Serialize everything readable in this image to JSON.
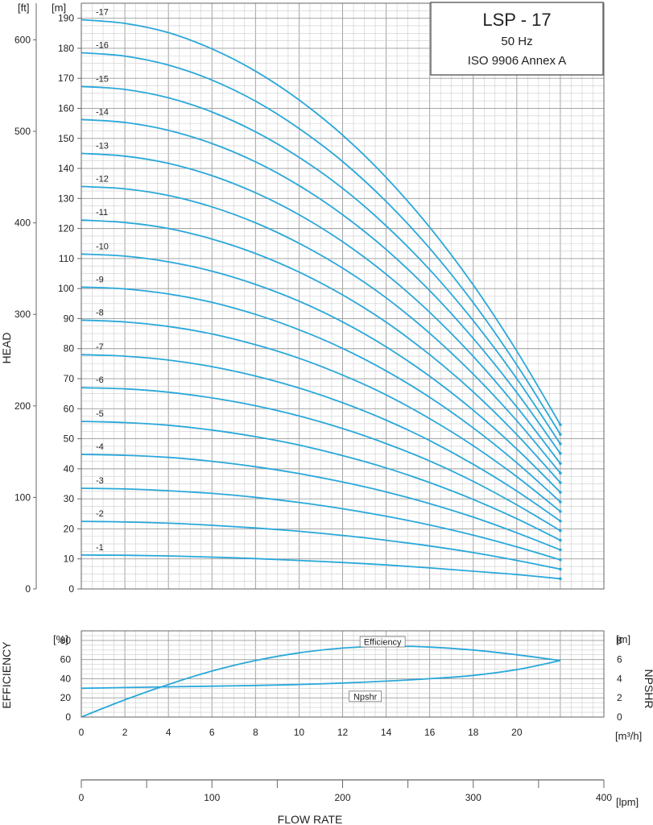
{
  "title_box": {
    "title": "LSP - 17",
    "frequency": "50 Hz",
    "standard": "ISO 9906 Annex A"
  },
  "colors": {
    "curve": "#2aa8da",
    "grid_minor": "#cccccc",
    "grid_major": "#9a9a9a",
    "axis": "#666666"
  },
  "chart_data": [
    {
      "type": "line",
      "name": "head",
      "ylabel": "HEAD",
      "unit_left": "[ft]",
      "unit_right": "[m]",
      "xlim": [
        0,
        24
      ],
      "ylim": [
        0,
        195
      ],
      "ylim_ft": [
        0,
        640
      ],
      "y_ticks": [
        0,
        10,
        20,
        30,
        40,
        50,
        60,
        70,
        80,
        90,
        100,
        110,
        120,
        130,
        140,
        150,
        160,
        170,
        180,
        190
      ],
      "y_ticks_ft": [
        0,
        100,
        200,
        300,
        400,
        500,
        600
      ],
      "grid": true,
      "x": [
        0,
        2,
        4,
        6,
        8,
        10,
        12,
        14,
        16,
        18,
        20,
        22
      ],
      "series": [
        {
          "name": "-1",
          "values": [
            11.3,
            11.2,
            11.0,
            10.6,
            10.1,
            9.5,
            8.8,
            8.0,
            7.0,
            5.9,
            4.8,
            3.4
          ]
        },
        {
          "name": "-2",
          "values": [
            22.5,
            22.3,
            21.9,
            21.2,
            20.3,
            19.2,
            17.8,
            16.2,
            14.3,
            12.1,
            9.5,
            6.6
          ]
        },
        {
          "name": "-3",
          "values": [
            33.5,
            33.3,
            32.7,
            31.8,
            30.5,
            28.8,
            26.7,
            24.2,
            21.3,
            17.9,
            14.0,
            9.7
          ]
        },
        {
          "name": "-4",
          "values": [
            44.8,
            44.5,
            43.8,
            42.5,
            40.7,
            38.4,
            35.6,
            32.3,
            28.4,
            23.9,
            18.7,
            13.0
          ]
        },
        {
          "name": "-5",
          "values": [
            55.8,
            55.4,
            54.5,
            52.9,
            50.7,
            47.9,
            44.4,
            40.3,
            35.4,
            29.8,
            23.4,
            16.2
          ]
        },
        {
          "name": "-6",
          "values": [
            67.0,
            66.6,
            65.5,
            63.6,
            61.0,
            57.6,
            53.4,
            48.4,
            42.6,
            35.8,
            28.0,
            19.4
          ]
        },
        {
          "name": "-7",
          "values": [
            78.0,
            77.5,
            76.2,
            74.0,
            70.9,
            66.9,
            62.0,
            56.2,
            49.4,
            41.5,
            32.6,
            22.6
          ]
        },
        {
          "name": "-8",
          "values": [
            89.5,
            88.9,
            87.4,
            84.9,
            81.3,
            76.8,
            71.2,
            64.6,
            56.7,
            47.7,
            37.4,
            25.8
          ]
        },
        {
          "name": "-9",
          "values": [
            100.5,
            99.9,
            98.2,
            95.4,
            91.4,
            86.3,
            80.1,
            72.6,
            63.8,
            53.6,
            42.0,
            29.0
          ]
        },
        {
          "name": "-10",
          "values": [
            111.5,
            110.8,
            108.9,
            105.8,
            101.4,
            95.8,
            88.9,
            80.6,
            70.8,
            59.5,
            46.6,
            32.2
          ]
        },
        {
          "name": "-11",
          "values": [
            122.8,
            122.0,
            120.0,
            116.5,
            111.7,
            105.5,
            97.9,
            88.8,
            78.0,
            65.6,
            51.4,
            35.4
          ]
        },
        {
          "name": "-12",
          "values": [
            134.0,
            133.2,
            131.0,
            127.2,
            121.9,
            115.1,
            106.8,
            96.9,
            85.1,
            71.5,
            56.0,
            38.6
          ]
        },
        {
          "name": "-13",
          "values": [
            145.0,
            144.1,
            141.7,
            137.6,
            131.9,
            124.6,
            115.6,
            104.8,
            92.1,
            77.4,
            60.6,
            41.8
          ]
        },
        {
          "name": "-14",
          "values": [
            156.3,
            155.3,
            152.7,
            148.3,
            142.2,
            134.3,
            124.6,
            113.0,
            99.3,
            83.4,
            65.4,
            45.1
          ]
        },
        {
          "name": "-15",
          "values": [
            167.3,
            166.3,
            163.5,
            158.8,
            152.2,
            143.7,
            133.4,
            120.9,
            106.3,
            89.3,
            70.0,
            48.3
          ]
        },
        {
          "name": "-16",
          "values": [
            178.5,
            177.4,
            174.4,
            169.4,
            162.4,
            153.3,
            142.3,
            129.0,
            113.4,
            95.3,
            74.6,
            51.5
          ]
        },
        {
          "name": "-17",
          "values": [
            189.5,
            188.3,
            185.2,
            179.8,
            172.4,
            162.8,
            151.1,
            137.0,
            120.4,
            101.2,
            79.2,
            54.7
          ]
        }
      ]
    },
    {
      "type": "line",
      "name": "efficiency-npshr",
      "ylabel": "EFFICIENCY",
      "ylabel_right": "NPSHR",
      "unit_left": "[%]",
      "unit_right": "[m]",
      "xlim": [
        0,
        24
      ],
      "ylim": [
        0,
        90
      ],
      "ylim_right": [
        0,
        9
      ],
      "y_ticks": [
        0,
        20,
        40,
        60,
        80
      ],
      "y_ticks_right": [
        0,
        2,
        4,
        6,
        8
      ],
      "x_ticks": [
        0,
        2,
        4,
        6,
        8,
        10,
        12,
        14,
        16,
        18,
        20
      ],
      "x_unit": "[m³/h]",
      "grid": true,
      "series": [
        {
          "name": "Efficiency",
          "x": [
            0,
            2,
            4,
            6,
            8,
            10,
            12,
            14,
            16,
            18,
            20,
            22
          ],
          "values": [
            0,
            18,
            34,
            48,
            59,
            67,
            72,
            74,
            73,
            70,
            65,
            59
          ]
        },
        {
          "name": "Npshr",
          "axis": "right",
          "x": [
            0,
            2,
            4,
            6,
            8,
            10,
            12,
            14,
            16,
            18,
            20,
            22
          ],
          "values": [
            3.0,
            3.08,
            3.15,
            3.22,
            3.3,
            3.4,
            3.55,
            3.75,
            4.0,
            4.35,
            4.95,
            5.9
          ]
        }
      ]
    },
    {
      "type": "axis",
      "name": "flow-rate-lpm",
      "xlabel": "FLOW RATE",
      "x_unit": "[lpm]",
      "xlim": [
        0,
        400
      ],
      "x_ticks": [
        0,
        100,
        200,
        300,
        400
      ]
    }
  ]
}
